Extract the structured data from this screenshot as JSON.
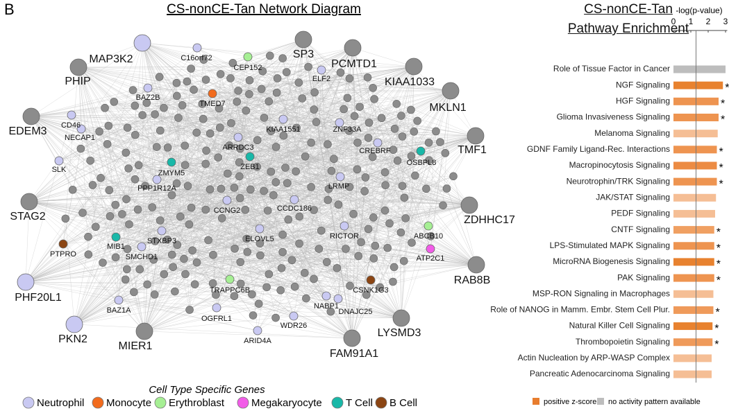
{
  "panel_label": "B",
  "network": {
    "title": "CS-nonCE-Tan Network Diagram",
    "nodes": [
      {
        "label": "SP3",
        "group": null
      },
      {
        "label": "PCMTD1",
        "group": null
      },
      {
        "label": "KIAA1033",
        "group": null
      },
      {
        "label": "MKLN1",
        "group": null
      },
      {
        "label": "TMF1",
        "group": null
      },
      {
        "label": "ZDHHC17",
        "group": null
      },
      {
        "label": "RAB8B",
        "group": null
      },
      {
        "label": "LYSMD3",
        "group": null
      },
      {
        "label": "FAM91A1",
        "group": null
      },
      {
        "label": "MIER1",
        "group": null
      },
      {
        "label": "PKN2",
        "group": "Neutrophil"
      },
      {
        "label": "PHF20L1",
        "group": "Neutrophil"
      },
      {
        "label": "STAG2",
        "group": null
      },
      {
        "label": "EDEM3",
        "group": null
      },
      {
        "label": "PHIP",
        "group": null
      },
      {
        "label": "MAP3K2",
        "group": "Neutrophil"
      },
      {
        "label": "C16orf72",
        "group": "Neutrophil"
      },
      {
        "label": "CEP152",
        "group": "Erythroblast"
      },
      {
        "label": "ELF2",
        "group": "Neutrophil"
      },
      {
        "label": "BAZ2B",
        "group": "Neutrophil"
      },
      {
        "label": "TMED7",
        "group": "Monocyte"
      },
      {
        "label": "CD46",
        "group": "Neutrophil"
      },
      {
        "label": "NECAP1",
        "group": "Neutrophil"
      },
      {
        "label": "KIAA1551",
        "group": "Neutrophil"
      },
      {
        "label": "ZNF33A",
        "group": "Neutrophil"
      },
      {
        "label": "ARRDC3",
        "group": "Neutrophil"
      },
      {
        "label": "CREBRF",
        "group": "Neutrophil"
      },
      {
        "label": "OSBPL8",
        "group": "T Cell"
      },
      {
        "label": "SLK",
        "group": "Neutrophil"
      },
      {
        "label": "ZMYM5",
        "group": "T Cell"
      },
      {
        "label": "ZEB1",
        "group": "T Cell"
      },
      {
        "label": "PPP1R12A",
        "group": "Neutrophil"
      },
      {
        "label": "LRMP",
        "group": "Neutrophil"
      },
      {
        "label": "CCNG2",
        "group": "Neutrophil"
      },
      {
        "label": "CCDC186",
        "group": "Neutrophil"
      },
      {
        "label": "MIB1",
        "group": "T Cell"
      },
      {
        "label": "STXBP3",
        "group": "Neutrophil"
      },
      {
        "label": "ABCB10",
        "group": "Erythroblast"
      },
      {
        "label": "SMCHD1",
        "group": "Neutrophil"
      },
      {
        "label": "ELOVL5",
        "group": "Neutrophil"
      },
      {
        "label": "RICTOR",
        "group": "Neutrophil"
      },
      {
        "label": "ATP2C1",
        "group": "Megakaryocyte"
      },
      {
        "label": "PTPRO",
        "group": "B Cell"
      },
      {
        "label": "TRAPPC6B",
        "group": "Erythroblast"
      },
      {
        "label": "CSNK1G3",
        "group": "B Cell"
      },
      {
        "label": "BAZ1A",
        "group": "Neutrophil"
      },
      {
        "label": "NABP1",
        "group": "Neutrophil"
      },
      {
        "label": "DNAJC25",
        "group": "Neutrophil"
      },
      {
        "label": "OGFRL1",
        "group": "Neutrophil"
      },
      {
        "label": "WDR26",
        "group": "Neutrophil"
      },
      {
        "label": "ARID4A",
        "group": "Neutrophil"
      }
    ],
    "node_color": "#8c8c8c",
    "legend_title": "Cell Type Specific Genes",
    "legend": [
      {
        "name": "Neutrophil",
        "color": "#c9c9f2"
      },
      {
        "name": "Monocyte",
        "color": "#f26b1d"
      },
      {
        "name": "Erythroblast",
        "color": "#a6ef94"
      },
      {
        "name": "Megakaryocyte",
        "color": "#f25ce8"
      },
      {
        "name": "T Cell",
        "color": "#19b8a8"
      },
      {
        "name": "B Cell",
        "color": "#8b4513"
      }
    ]
  },
  "chart_data": {
    "type": "bar",
    "orientation": "horizontal",
    "title": "CS-nonCE-Tan Pathway Enrichment",
    "x_label": "-log(p-value)",
    "xlim": [
      0,
      3.1
    ],
    "xticks": [
      0,
      1,
      2,
      3
    ],
    "threshold": 1.3,
    "categories": [
      "Role of Tissue Factor in Cancer",
      "NGF Signaling",
      "HGF Signaling",
      "Glioma Invasiveness Signaling",
      "Melanoma Signaling",
      "GDNF Family Ligand-Rec. Interactions",
      "Macropinocytosis Signaling",
      "Neurotrophin/TRK Signaling",
      "JAK/STAT Signaling",
      "PEDF Signaling",
      "CNTF Signaling",
      "LPS-Stimulated MAPK Signaling",
      "MicroRNA Biogenesis Signaling",
      "PAK Signaling",
      "MSP-RON Signaling in Macrophages",
      "Role of NANOG in Mamm. Embr. Stem Cell Plur.",
      "Natural Killer Cell Signaling",
      "Thrombopoietin Signaling",
      "Actin Nucleation by ARP-WASP Complex",
      "Pancreatic Adenocarcinoma Signaling"
    ],
    "values": [
      3.0,
      2.85,
      2.6,
      2.6,
      2.55,
      2.5,
      2.5,
      2.5,
      2.45,
      2.4,
      2.35,
      2.35,
      2.35,
      2.35,
      2.3,
      2.3,
      2.25,
      2.25,
      2.2,
      2.2
    ],
    "colors": [
      "#bdbdbd",
      "#e8822f",
      "#ee9450",
      "#ee9450",
      "#f5be95",
      "#ee9450",
      "#ec8b43",
      "#ee9450",
      "#f5be95",
      "#f5be95",
      "#f0a062",
      "#ee9450",
      "#e8822f",
      "#ee9450",
      "#f5be95",
      "#ef9a5a",
      "#e8822f",
      "#ef9a5a",
      "#f5be95",
      "#f5be95"
    ],
    "annotations": [
      null,
      "*",
      "*",
      "*",
      null,
      "*",
      "*",
      "*",
      null,
      null,
      "*",
      "*",
      "*",
      "*",
      null,
      "*",
      "*",
      "*",
      null,
      null
    ],
    "legend": [
      {
        "name": "positive z-score",
        "color": "#e87d2e"
      },
      {
        "name": "no activity pattern available",
        "color": "#bdbdbd"
      }
    ]
  }
}
